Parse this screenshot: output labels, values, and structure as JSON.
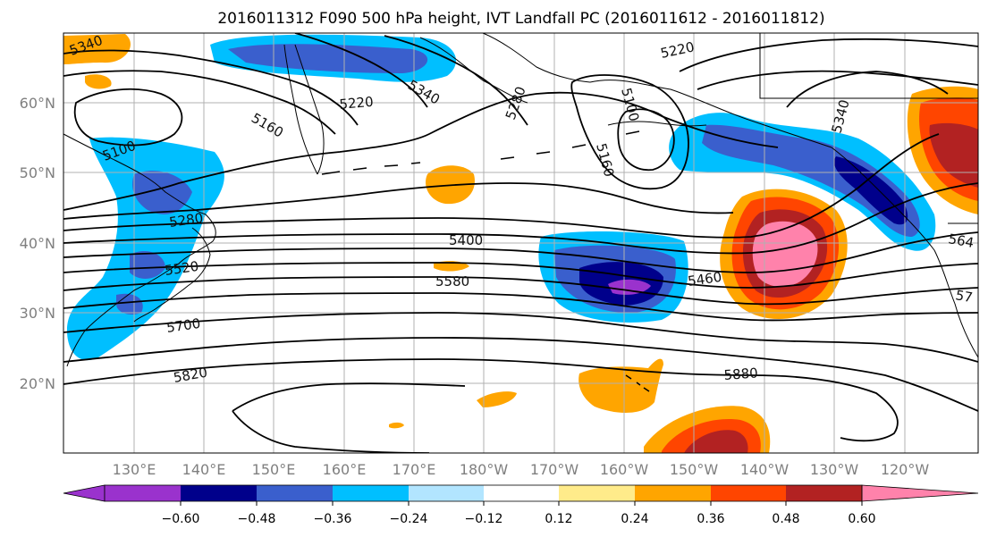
{
  "title": "2016011312 F090 500 hPa height, IVT Landfall PC (2016011612 - 2016011812)",
  "map": {
    "lon_ticks": [
      "130°E",
      "140°E",
      "150°E",
      "160°E",
      "170°E",
      "180°W",
      "170°W",
      "160°W",
      "150°W",
      "140°W",
      "130°W",
      "120°W"
    ],
    "lat_ticks": [
      "60°N",
      "50°N",
      "40°N",
      "30°N",
      "20°N"
    ],
    "contour_labels": [
      {
        "id": "c5340a",
        "text": "5340"
      },
      {
        "id": "c5100",
        "text": "5100"
      },
      {
        "id": "c5160a",
        "text": "5160"
      },
      {
        "id": "c5220a",
        "text": "5220"
      },
      {
        "id": "c5340b",
        "text": "5340"
      },
      {
        "id": "c5280a",
        "text": "5280"
      },
      {
        "id": "c5220b",
        "text": "5220"
      },
      {
        "id": "c5100b",
        "text": "5100"
      },
      {
        "id": "c5160b",
        "text": "5160"
      },
      {
        "id": "c5340c",
        "text": "5340"
      },
      {
        "id": "c5280b",
        "text": "5280"
      },
      {
        "id": "c5520",
        "text": "5520"
      },
      {
        "id": "c5700",
        "text": "5700"
      },
      {
        "id": "c5820",
        "text": "5820"
      },
      {
        "id": "c5400",
        "text": "5400"
      },
      {
        "id": "c5580",
        "text": "5580"
      },
      {
        "id": "c5460",
        "text": "5460"
      },
      {
        "id": "c5880",
        "text": "5880"
      },
      {
        "id": "c564",
        "text": "564"
      },
      {
        "id": "c57",
        "text": "57"
      }
    ]
  },
  "colorbar": {
    "ticks": [
      "−0.60",
      "−0.48",
      "−0.36",
      "−0.24",
      "−0.12",
      "0.12",
      "0.24",
      "0.36",
      "0.48",
      "0.60"
    ],
    "colors": [
      "#9a32cd",
      "#00008b",
      "#3a5fcd",
      "#00bfff",
      "#b2e5ff",
      "#ffffff",
      "#ffeb8a",
      "#ffa500",
      "#ff4500",
      "#b22222",
      "#ff82ab"
    ]
  },
  "colors": {
    "purple": "#9a32cd",
    "navy": "#00008b",
    "blue": "#3a5fcd",
    "sky": "#00bfff",
    "pale": "#b2e5ff",
    "yellow": "#ffeb8a",
    "orange": "#ffa500",
    "red": "#ff4500",
    "darkred": "#b22222",
    "pink": "#ff82ab"
  }
}
